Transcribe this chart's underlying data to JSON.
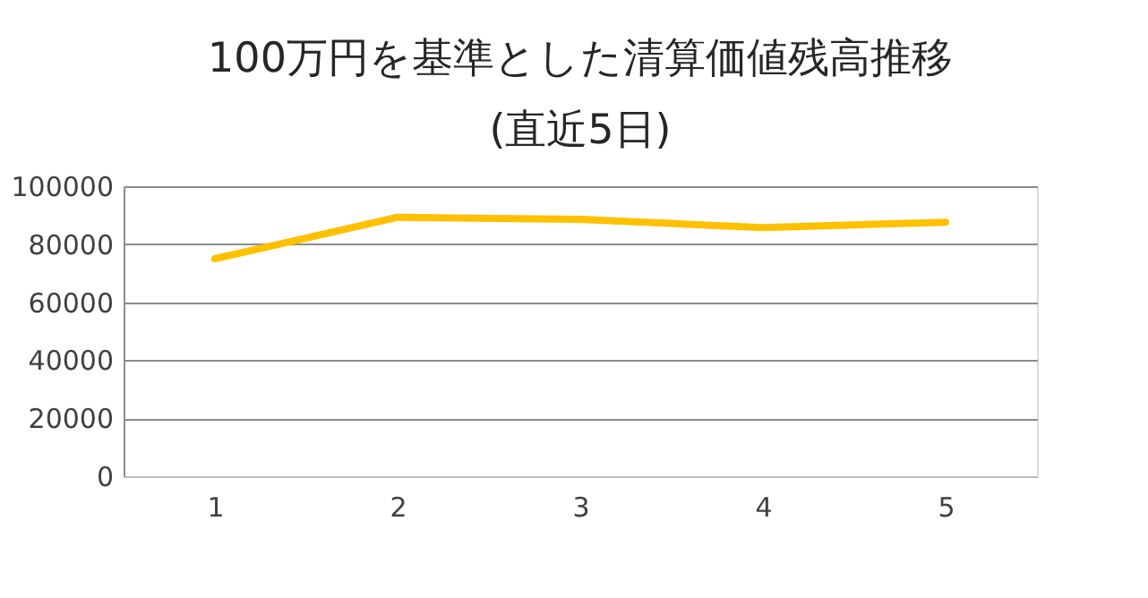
{
  "chart_data": {
    "type": "line",
    "title": [
      "100万円を基準とした清算価値残高推移",
      "(直近5日)"
    ],
    "categories": [
      "1",
      "2",
      "3",
      "4",
      "5"
    ],
    "series": [
      {
        "color": "#ffc000",
        "values": [
          75000,
          89300,
          88600,
          85700,
          87600
        ]
      }
    ],
    "ylim": [
      0,
      100000
    ],
    "yticks": [
      0,
      20000,
      40000,
      60000,
      80000,
      100000
    ],
    "grid": "y",
    "marker": "none",
    "line_style": "solid"
  }
}
